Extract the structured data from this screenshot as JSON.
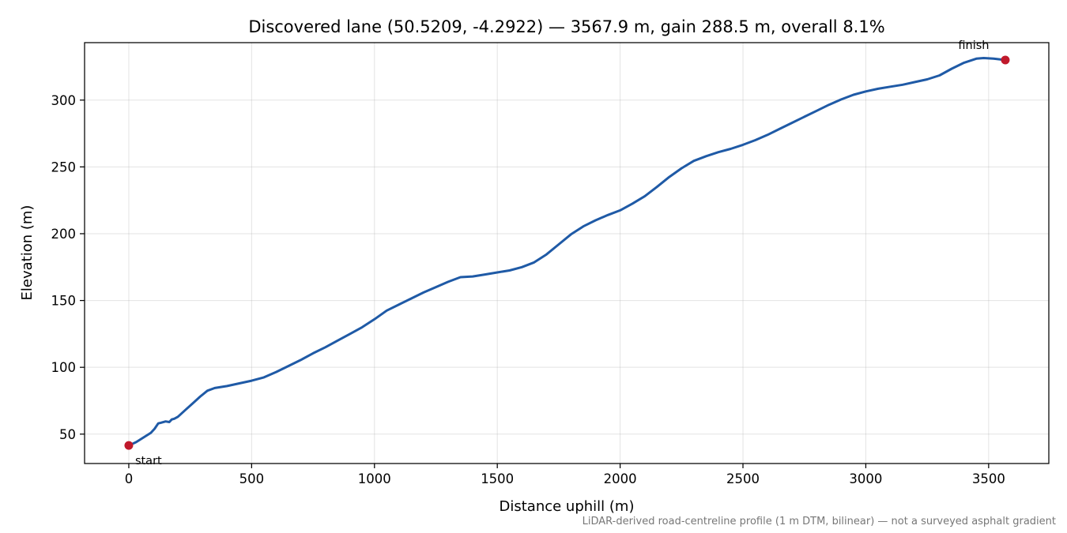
{
  "chart_data": {
    "type": "line",
    "title": "Discovered lane (50.5209, -4.2922) — 3567.9 m, gain 288.5 m, overall 8.1%",
    "xlabel": "Distance uphill (m)",
    "ylabel": "Elevation (m)",
    "xlim": [
      -180,
      3745
    ],
    "ylim": [
      28,
      343
    ],
    "xticks": [
      0,
      500,
      1000,
      1500,
      2000,
      2500,
      3000,
      3500
    ],
    "yticks": [
      50,
      100,
      150,
      200,
      250,
      300
    ],
    "grid": true,
    "line_color": "#1f5aa6",
    "marker_color": "#c0192b",
    "series": [
      {
        "x": [
          0,
          30,
          60,
          90,
          105,
          120,
          130,
          150,
          165,
          175,
          185,
          200,
          230,
          260,
          290,
          320,
          350,
          400,
          450,
          500,
          550,
          600,
          650,
          700,
          750,
          800,
          850,
          900,
          950,
          1000,
          1050,
          1100,
          1150,
          1200,
          1250,
          1300,
          1350,
          1400,
          1450,
          1500,
          1550,
          1600,
          1650,
          1700,
          1750,
          1800,
          1850,
          1900,
          1950,
          2000,
          2050,
          2100,
          2150,
          2200,
          2250,
          2300,
          2350,
          2400,
          2450,
          2500,
          2550,
          2600,
          2650,
          2700,
          2750,
          2800,
          2850,
          2900,
          2950,
          3000,
          3050,
          3100,
          3150,
          3200,
          3250,
          3300,
          3350,
          3400,
          3450,
          3480,
          3520,
          3567.9
        ],
        "values": [
          41.5,
          44,
          47.5,
          51,
          54,
          58,
          58.5,
          59.5,
          59,
          61,
          61.5,
          63,
          68,
          73,
          78,
          82.5,
          84.5,
          86,
          88,
          90,
          92.5,
          96.5,
          101,
          105.5,
          110.5,
          115,
          120,
          125,
          130,
          136,
          142.5,
          147,
          151.5,
          156,
          160,
          164,
          167.5,
          168,
          169.5,
          171,
          172.5,
          175,
          178.5,
          184.5,
          192,
          199.5,
          205.5,
          210,
          214,
          217.5,
          222.5,
          228,
          235,
          242.5,
          249,
          254.5,
          258,
          261,
          263.5,
          266.5,
          270,
          274,
          278.5,
          283,
          287.5,
          292,
          296.5,
          300.5,
          304,
          306.5,
          308.5,
          310,
          311.5,
          313.5,
          315.5,
          318.5,
          323.5,
          328,
          331,
          331.5,
          331,
          330
        ]
      }
    ],
    "annotations": [
      {
        "text": "start",
        "x": 0,
        "y": 41.5
      },
      {
        "text": "finish",
        "x": 3567.9,
        "y": 330
      }
    ],
    "footnote": "LiDAR-derived road-centreline profile (1 m DTM, bilinear) — not a surveyed asphalt gradient"
  }
}
